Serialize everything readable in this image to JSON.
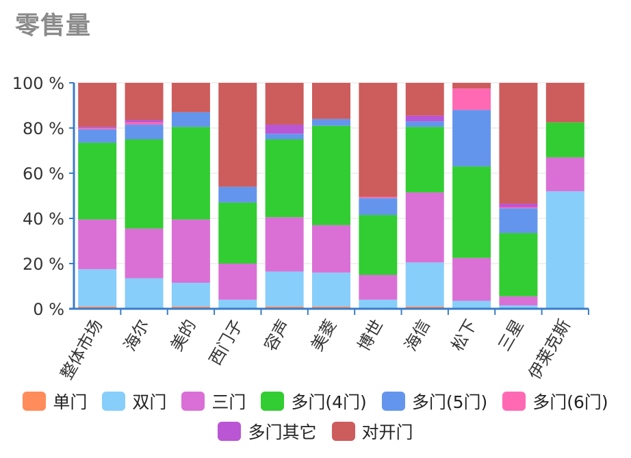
{
  "title": "零售量",
  "chart_data": {
    "type": "bar",
    "stacked": true,
    "percent": true,
    "ylim": [
      0,
      100
    ],
    "yticks": [
      "0 %",
      "20 %",
      "40 %",
      "60 %",
      "80 %",
      "100 %"
    ],
    "categories": [
      "整体市场",
      "海尔",
      "美的",
      "西门子",
      "容声",
      "美菱",
      "博世",
      "海信",
      "松下",
      "三星",
      "伊莱克斯"
    ],
    "series": [
      {
        "name": "单门",
        "color": "#ff8c5a",
        "values": [
          1,
          0,
          1,
          0,
          1,
          1,
          0,
          1,
          0,
          0,
          0
        ]
      },
      {
        "name": "双门",
        "color": "#87cefa",
        "values": [
          16.5,
          13.5,
          10.5,
          4,
          15.5,
          15,
          4,
          19.5,
          3.5,
          1.5,
          52
        ]
      },
      {
        "name": "三门",
        "color": "#da70d6",
        "values": [
          22,
          22,
          28,
          16,
          24,
          21,
          11,
          31,
          19,
          4,
          15
        ]
      },
      {
        "name": "多门(4门)",
        "color": "#32cd32",
        "values": [
          34,
          39.5,
          41,
          27,
          34.5,
          44,
          26.5,
          29,
          40.5,
          28,
          15.5
        ]
      },
      {
        "name": "多门(5门)",
        "color": "#6495ed",
        "values": [
          6,
          6.5,
          6.5,
          7,
          2.5,
          3,
          7.5,
          2.5,
          25,
          11,
          0
        ]
      },
      {
        "name": "多门(6门)",
        "color": "#ff69b4",
        "values": [
          0.5,
          1,
          0,
          0,
          0,
          0,
          0.5,
          0,
          9.5,
          0.5,
          0
        ]
      },
      {
        "name": "多门其它",
        "color": "#ba55d3",
        "values": [
          0.5,
          1,
          0,
          0,
          4,
          0,
          0,
          2.5,
          0,
          1.5,
          0
        ]
      },
      {
        "name": "对开门",
        "color": "#cd5c5c",
        "values": [
          19.5,
          16.5,
          13,
          46,
          18.5,
          16,
          50.5,
          14.5,
          2.5,
          53.5,
          17.5
        ]
      }
    ],
    "legend_position": "bottom",
    "grid": true
  }
}
